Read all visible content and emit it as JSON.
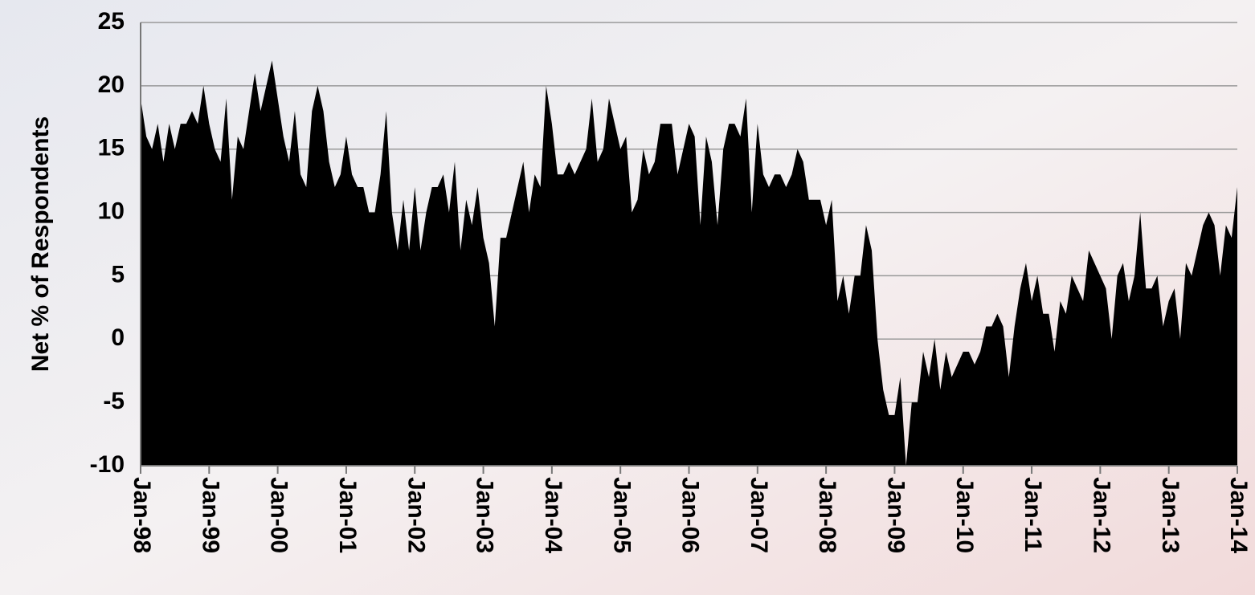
{
  "chart_data": {
    "type": "area",
    "y_label": "Net % of Respondents",
    "color": "#000000",
    "grid": true,
    "ylim": [
      -10,
      25
    ],
    "yticks": [
      -10,
      -5,
      0,
      5,
      10,
      15,
      20,
      25
    ],
    "categories": [
      "Jan-98",
      null,
      null,
      null,
      null,
      null,
      null,
      null,
      null,
      null,
      null,
      null,
      "Jan-99",
      null,
      null,
      null,
      null,
      null,
      null,
      null,
      null,
      null,
      null,
      null,
      "Jan-00",
      null,
      null,
      null,
      null,
      null,
      null,
      null,
      null,
      null,
      null,
      null,
      "Jan-01",
      null,
      null,
      null,
      null,
      null,
      null,
      null,
      null,
      null,
      null,
      null,
      "Jan-02",
      null,
      null,
      null,
      null,
      null,
      null,
      null,
      null,
      null,
      null,
      null,
      "Jan-03",
      null,
      null,
      null,
      null,
      null,
      null,
      null,
      null,
      null,
      null,
      null,
      "Jan-04",
      null,
      null,
      null,
      null,
      null,
      null,
      null,
      null,
      null,
      null,
      null,
      "Jan-05",
      null,
      null,
      null,
      null,
      null,
      null,
      null,
      null,
      null,
      null,
      null,
      "Jan-06",
      null,
      null,
      null,
      null,
      null,
      null,
      null,
      null,
      null,
      null,
      null,
      "Jan-07",
      null,
      null,
      null,
      null,
      null,
      null,
      null,
      null,
      null,
      null,
      null,
      "Jan-08",
      null,
      null,
      null,
      null,
      null,
      null,
      null,
      null,
      null,
      null,
      null,
      "Jan-09",
      null,
      null,
      null,
      null,
      null,
      null,
      null,
      null,
      null,
      null,
      null,
      "Jan-10",
      null,
      null,
      null,
      null,
      null,
      null,
      null,
      null,
      null,
      null,
      null,
      "Jan-11",
      null,
      null,
      null,
      null,
      null,
      null,
      null,
      null,
      null,
      null,
      null,
      "Jan-12",
      null,
      null,
      null,
      null,
      null,
      null,
      null,
      null,
      null,
      null,
      null,
      "Jan-13",
      null,
      null,
      null,
      null,
      null,
      null,
      null,
      null,
      null,
      null,
      null,
      "Jan-14"
    ],
    "values": [
      19,
      16,
      15,
      17,
      14,
      17,
      15,
      17,
      17,
      18,
      17,
      20,
      17,
      15,
      14,
      19,
      11,
      16,
      15,
      18,
      21,
      18,
      20,
      22,
      19,
      16,
      14,
      18,
      13,
      12,
      18,
      20,
      18,
      14,
      12,
      13,
      16,
      13,
      12,
      12,
      10,
      10,
      13,
      18,
      10,
      7,
      11,
      7,
      12,
      7,
      10,
      12,
      12,
      13,
      10,
      14,
      7,
      11,
      9,
      12,
      8,
      6,
      1,
      8,
      8,
      10,
      12,
      14,
      10,
      13,
      12,
      20,
      17,
      13,
      13,
      14,
      13,
      14,
      15,
      19,
      14,
      15,
      19,
      17,
      15,
      16,
      10,
      11,
      15,
      13,
      14,
      17,
      17,
      17,
      13,
      15,
      17,
      16,
      9,
      16,
      14,
      9,
      15,
      17,
      17,
      16,
      19,
      10,
      17,
      13,
      12,
      13,
      13,
      12,
      13,
      15,
      14,
      11,
      11,
      11,
      9,
      11,
      3,
      5,
      2,
      5,
      5,
      9,
      7,
      0,
      -4,
      -6,
      -6,
      -3,
      -10,
      -5,
      -5,
      -1,
      -3,
      0,
      -4,
      -1,
      -3,
      -2,
      -1,
      -1,
      -2,
      -1,
      1,
      1,
      2,
      1,
      -3,
      1,
      4,
      6,
      3,
      5,
      2,
      2,
      -1,
      3,
      2,
      5,
      4,
      3,
      7,
      6,
      5,
      4,
      0,
      5,
      6,
      3,
      5,
      10,
      4,
      4,
      5,
      1,
      3,
      4,
      0,
      6,
      5,
      7,
      9,
      10,
      9,
      5,
      9,
      8,
      12
    ]
  }
}
